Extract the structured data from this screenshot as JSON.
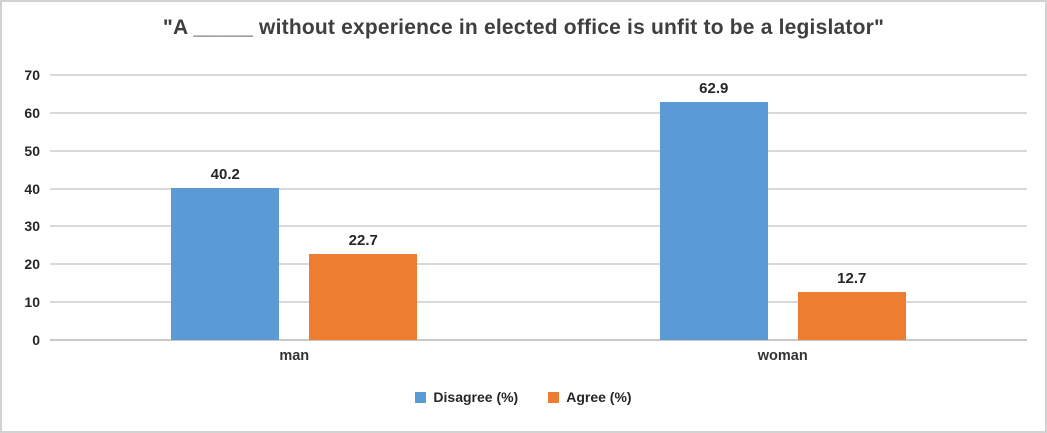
{
  "chart_data": {
    "type": "bar",
    "title": "\"A _____ without experience in elected office is unfit to be a legislator\"",
    "categories": [
      "man",
      "woman"
    ],
    "series": [
      {
        "name": "Disagree (%)",
        "color": "#5B9BD5",
        "values": [
          40.2,
          62.9
        ]
      },
      {
        "name": "Agree (%)",
        "color": "#ED7D31",
        "values": [
          22.7,
          12.7
        ]
      }
    ],
    "data_labels": [
      "40.2",
      "22.7",
      "62.9",
      "12.7"
    ],
    "xlabel": "",
    "ylabel": "",
    "ylim": [
      0,
      70
    ],
    "yticks": [
      0,
      10,
      20,
      30,
      40,
      50,
      60,
      70
    ],
    "grid": true,
    "legend_position": "bottom",
    "colors": {
      "gridline": "#D9D9D9",
      "baseline": "#C8C8C8",
      "tick_text": "#262626",
      "value_text": "#262626",
      "title_text": "#3F3F3F",
      "border": "#D2D2D2",
      "background": "#FFFFFF"
    }
  }
}
